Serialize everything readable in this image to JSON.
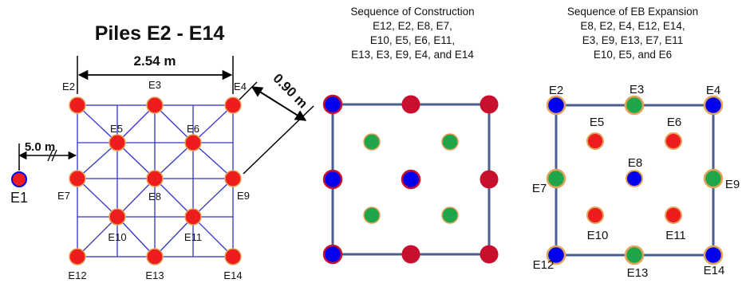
{
  "left": {
    "title": "Piles  E2 - E14",
    "dim_top": "2.54 m",
    "dim_diag": "0.90 m",
    "dim_offset": "5.0 m",
    "pile_e1": "E1",
    "piles": [
      {
        "id": "E2",
        "label": "E2"
      },
      {
        "id": "E3",
        "label": "E3"
      },
      {
        "id": "E4",
        "label": "E4"
      },
      {
        "id": "E5",
        "label": "E5"
      },
      {
        "id": "E6",
        "label": "E6"
      },
      {
        "id": "E7",
        "label": "E7"
      },
      {
        "id": "E8",
        "label": "E8"
      },
      {
        "id": "E9",
        "label": "E9"
      },
      {
        "id": "E10",
        "label": "E10"
      },
      {
        "id": "E11",
        "label": "E11"
      },
      {
        "id": "E12",
        "label": "E12"
      },
      {
        "id": "E13",
        "label": "E13"
      },
      {
        "id": "E14",
        "label": "E14"
      }
    ]
  },
  "middle": {
    "title_lines": [
      "Sequence of Construction",
      "E12, E2, E8, E7,",
      "E10, E5, E6, E11,",
      "E13, E3, E9, E4, and E14"
    ]
  },
  "right": {
    "title_lines": [
      "Sequence of EB Expansion",
      "E8, E2, E4, E12, E14,",
      "E3, E9, E13, E7, E11",
      "E10, E5, and E6"
    ],
    "labels": [
      "E2",
      "E3",
      "E4",
      "E5",
      "E6",
      "E7",
      "E8",
      "E9",
      "E10",
      "E11",
      "E12",
      "E13",
      "E14"
    ]
  },
  "colors": {
    "red": "#ee1c1c",
    "dark_red": "#c8102e",
    "blue": "#0000ee",
    "green": "#1fa64a",
    "pile_outline": "#e2a35a",
    "grid_line": "#3333cc",
    "box_line": "#4a5f8f"
  }
}
